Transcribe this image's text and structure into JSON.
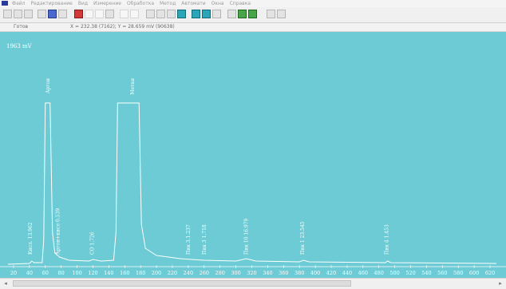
{
  "window": {
    "menu": [
      "Файл",
      "Редактирование",
      "Вид",
      "Измерение",
      "Обработка",
      "Метод",
      "Автомати",
      "Окна",
      "Справка"
    ]
  },
  "status": {
    "label": "Готов",
    "coordinates": "X = 232.38 (7162); Y = 28.659 mV (90638)"
  },
  "chart_data": {
    "type": "line",
    "title": "",
    "ylabel": "1963 mV",
    "xlabel": "",
    "x_ticks": [
      20,
      40,
      60,
      80,
      100,
      120,
      140,
      160,
      180,
      200,
      220,
      240,
      260,
      280,
      300,
      320,
      340,
      360,
      380,
      400,
      420,
      440,
      460,
      480,
      500,
      520,
      540,
      560,
      580,
      600,
      620
    ],
    "xlim": [
      13,
      628
    ],
    "grid": false,
    "line_color": "#ffffff",
    "peaks": [
      {
        "label": "Кисл. 13.962",
        "x": 41
      },
      {
        "label": "Аргон",
        "x": 63
      },
      {
        "label": "Аргон+кисл 0.539",
        "x": 76
      },
      {
        "label": "СО 1.726",
        "x": 119
      },
      {
        "label": "Метан",
        "x": 170
      },
      {
        "label": "Пик 3.1.237",
        "x": 240
      },
      {
        "label": "Пик 3 1.718",
        "x": 260
      },
      {
        "label": "Пик 10 16.979",
        "x": 313
      },
      {
        "label": "Пик 1 23.545",
        "x": 384
      },
      {
        "label": "Пик 4 1.453",
        "x": 490
      }
    ]
  }
}
